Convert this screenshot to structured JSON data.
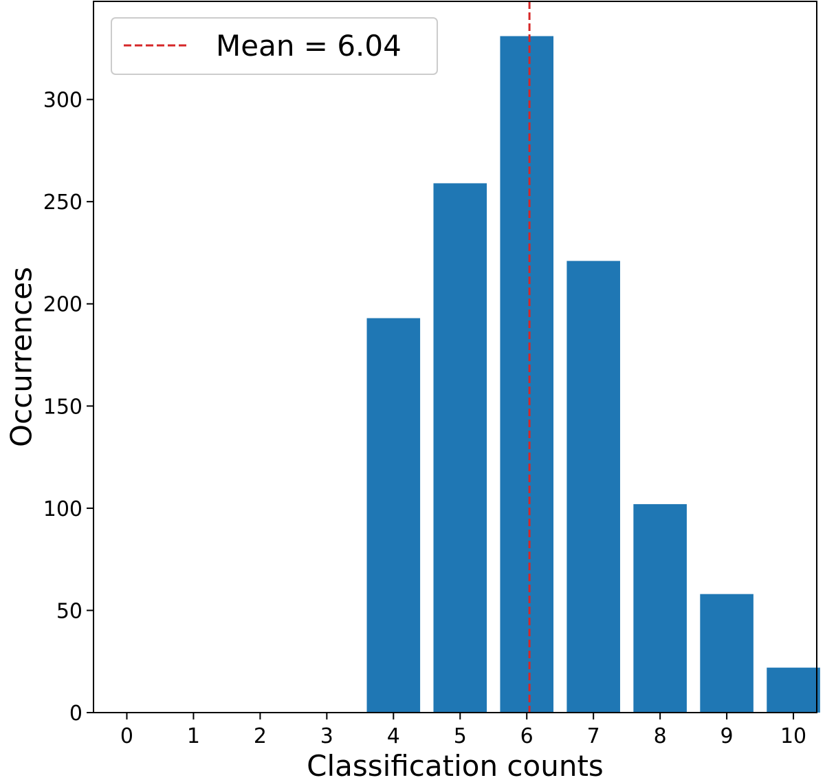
{
  "chart_data": {
    "type": "bar",
    "title": "",
    "xlabel": "Classification counts",
    "ylabel": "Occurrences",
    "categories": [
      "0",
      "1",
      "2",
      "3",
      "4",
      "5",
      "6",
      "7",
      "8",
      "9",
      "10"
    ],
    "x": [
      0,
      1,
      2,
      3,
      4,
      5,
      6,
      7,
      8,
      9,
      10
    ],
    "values": [
      0,
      0,
      0,
      0,
      193,
      259,
      331,
      221,
      102,
      58,
      22
    ],
    "xlim": [
      -0.5,
      10.35
    ],
    "ylim": [
      0,
      348
    ],
    "yticks": [
      0,
      50,
      100,
      150,
      200,
      250,
      300
    ],
    "ytick_labels": [
      "0",
      "50",
      "100",
      "150",
      "200",
      "250",
      "300"
    ],
    "bar_color": "#1f77b4",
    "mean": {
      "value": 6.04,
      "label": "Mean = 6.04",
      "color": "#d62728",
      "style": "dashed"
    },
    "legend": {
      "location": "upper-left",
      "entries": [
        "Mean = 6.04"
      ]
    },
    "grid": false
  }
}
